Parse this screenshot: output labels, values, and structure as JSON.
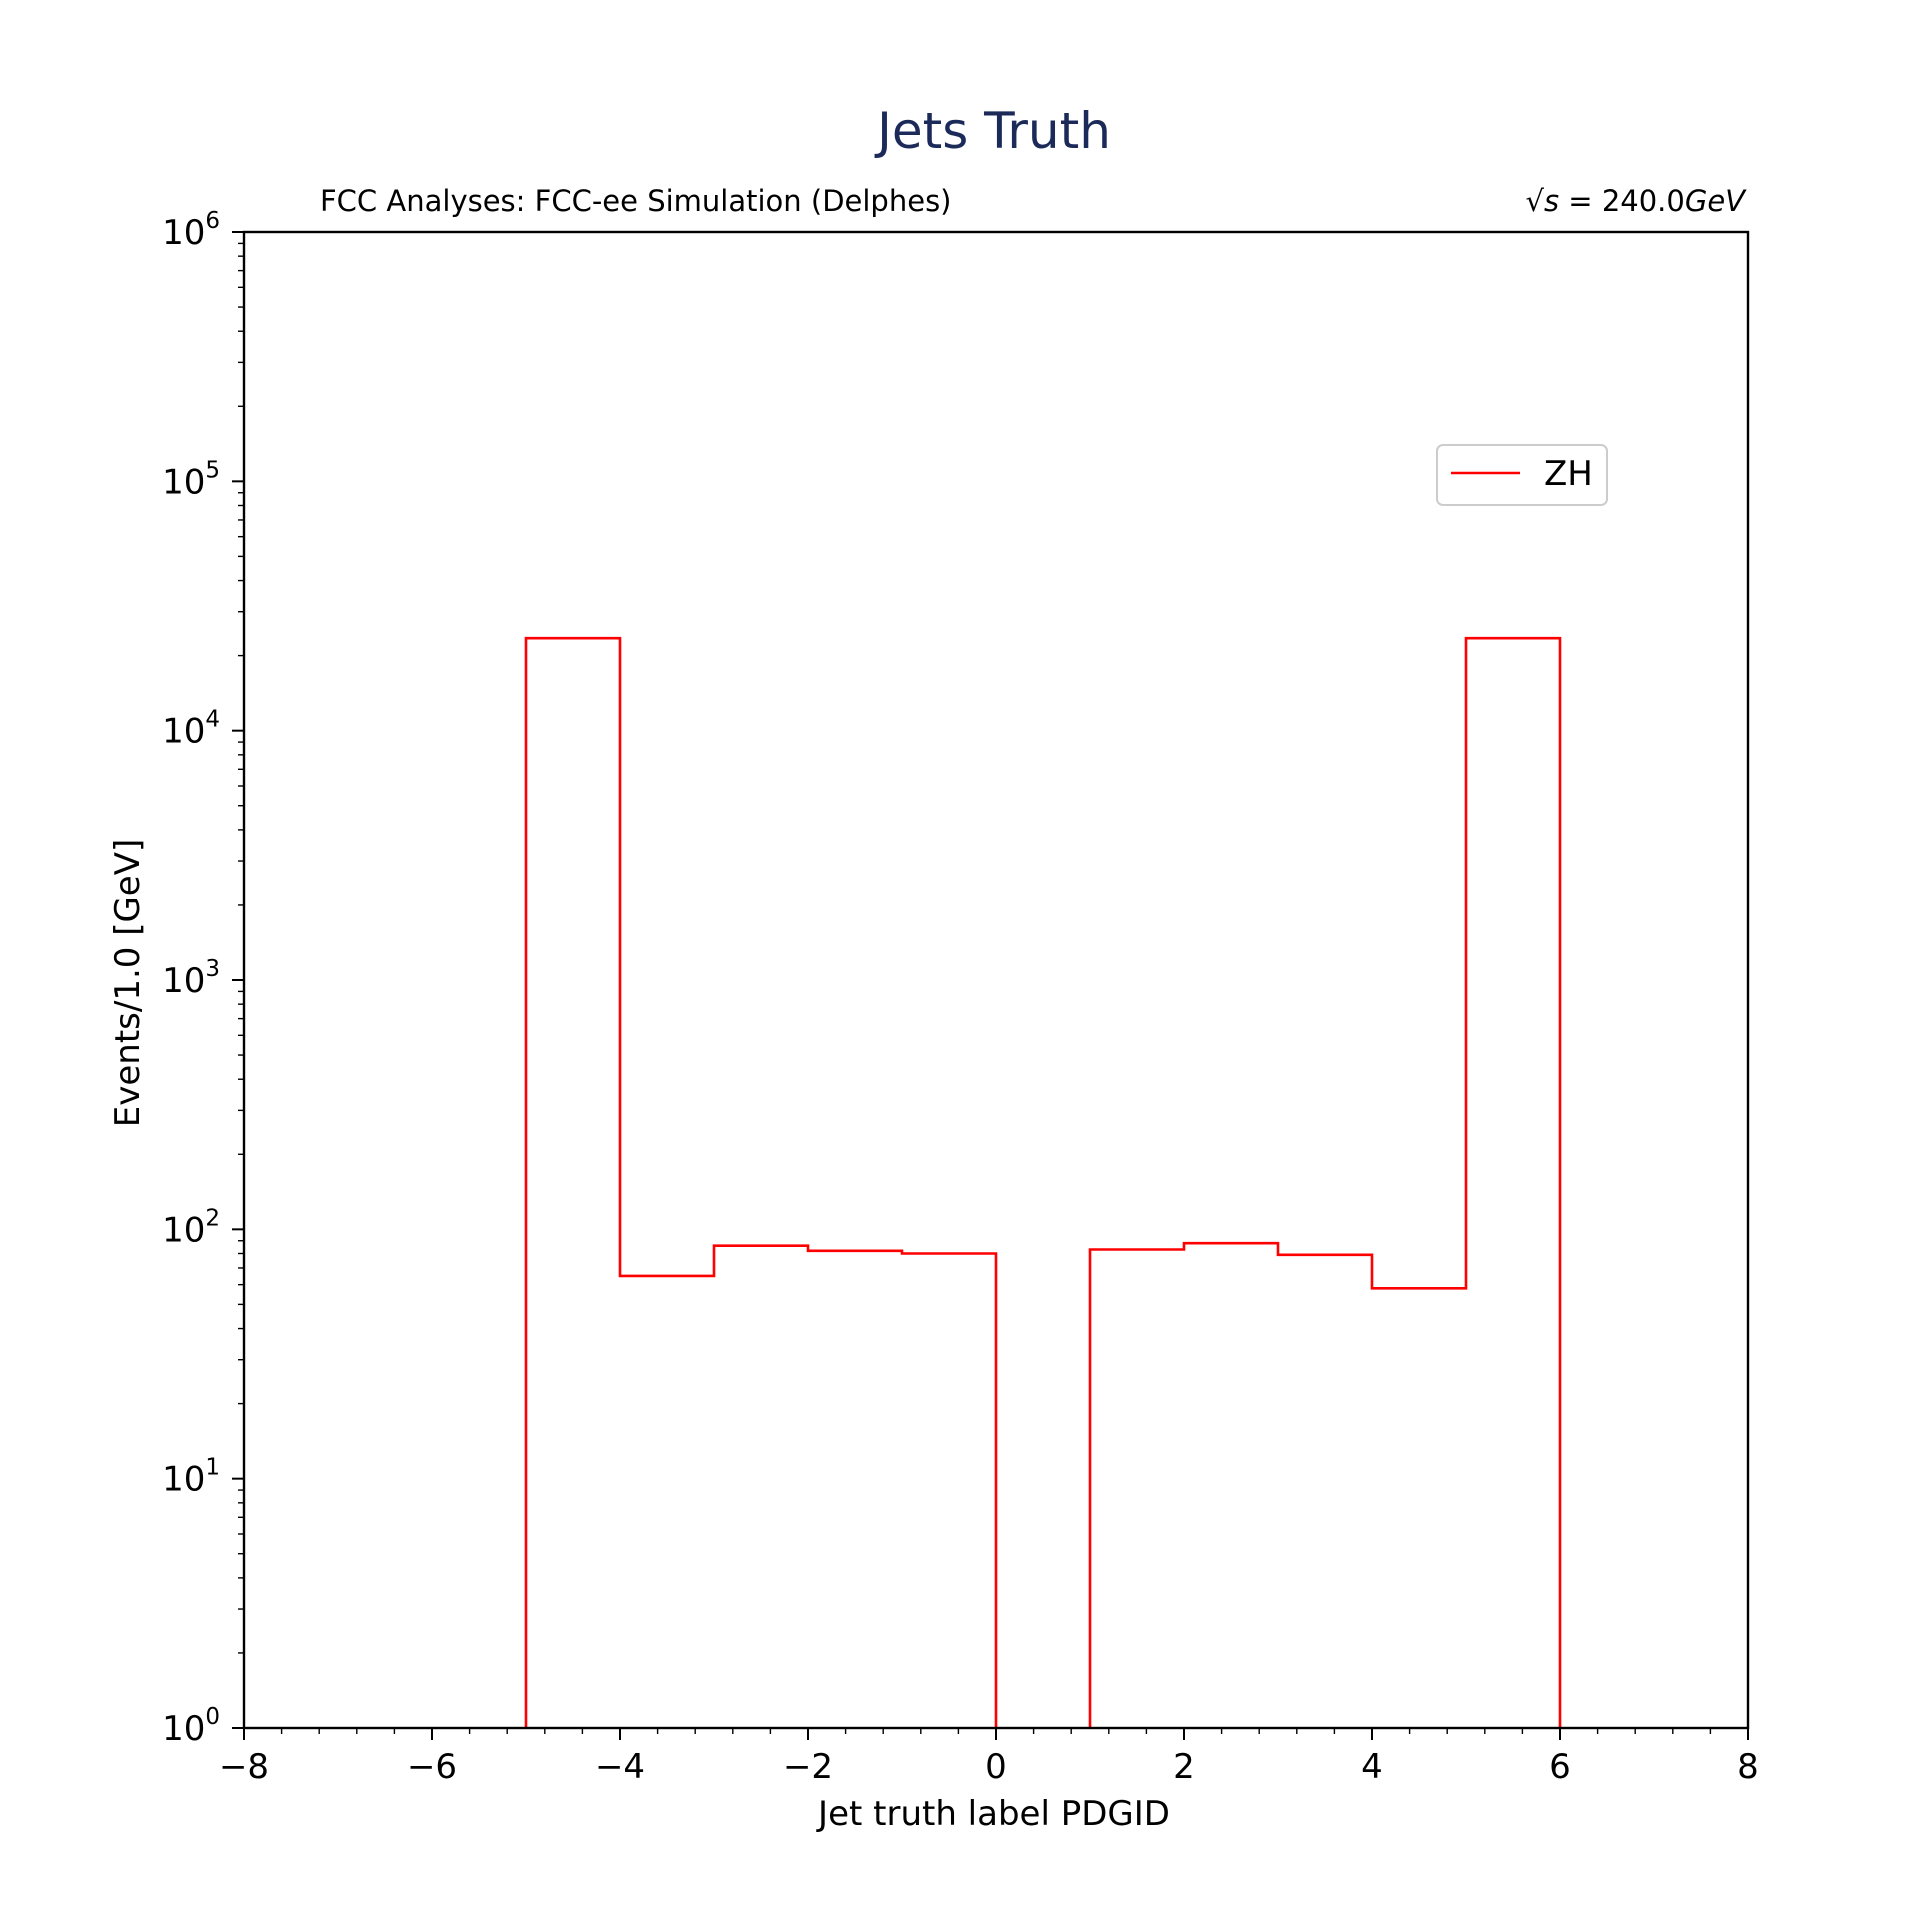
{
  "chart_data": {
    "type": "histogram",
    "title": "Jets Truth",
    "subtitle_left": "FCC Analyses: FCC-ee Simulation (Delphes)",
    "subtitle_right_prefix": "√",
    "subtitle_right_var": "s",
    "subtitle_right_value": " = 240.0",
    "subtitle_right_unit": "GeV",
    "xlabel": "Jet truth label PDGID",
    "ylabel": "Events/1.0 [GeV]",
    "xlim": [
      -8,
      8
    ],
    "ylim": [
      1,
      1000000
    ],
    "yscale": "log",
    "xticks": [
      -8,
      -6,
      -4,
      -2,
      0,
      2,
      4,
      6,
      8
    ],
    "xtick_labels": [
      "−8",
      "−6",
      "−4",
      "−2",
      "0",
      "2",
      "4",
      "6",
      "8"
    ],
    "yticks_exp": [
      0,
      1,
      2,
      3,
      4,
      5,
      6
    ],
    "ytick_base": "10",
    "legend_position": "upper right",
    "grid": false,
    "series": [
      {
        "name": "ZH",
        "color": "#ff0000",
        "bin_edges": [
          -5,
          -4,
          -3,
          -2,
          -1,
          0,
          1,
          2,
          3,
          4,
          5,
          6
        ],
        "values": [
          23500,
          65,
          86,
          82,
          80,
          0,
          83,
          88,
          79,
          58,
          23500
        ]
      }
    ]
  }
}
